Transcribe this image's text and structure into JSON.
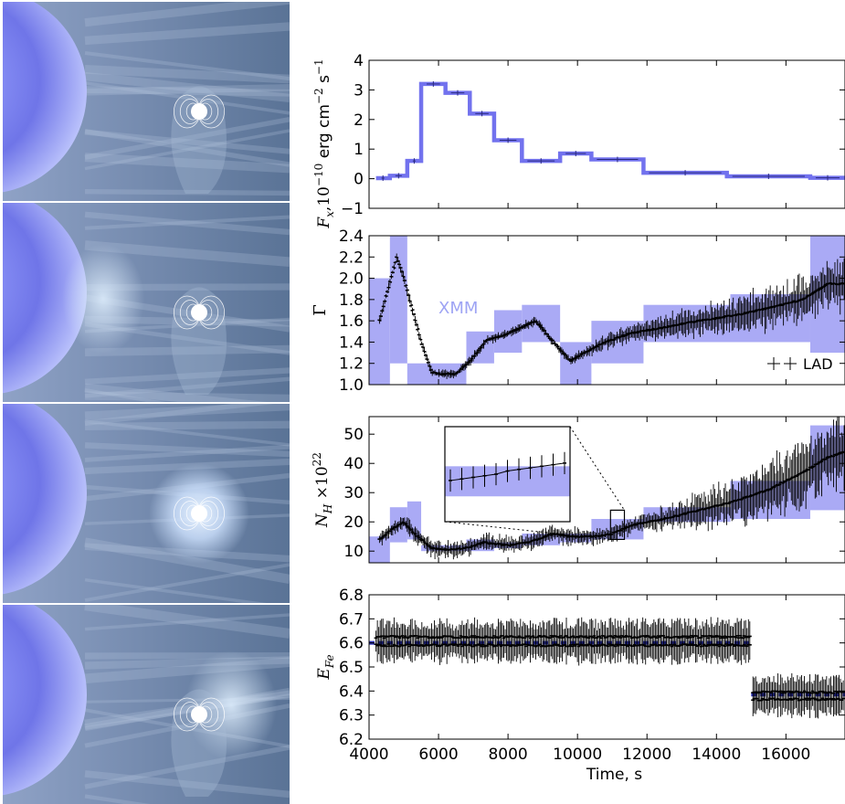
{
  "illustration": {
    "panels": [
      {
        "stage": "quiescent",
        "clump": "none"
      },
      {
        "stage": "clump-approaching",
        "clump": "left"
      },
      {
        "stage": "clump-engulfing",
        "clump": "center"
      },
      {
        "stage": "clump-receding",
        "clump": "right"
      }
    ],
    "colors": {
      "star": "#6f75e8",
      "background": "#6f88a8",
      "glow": "#eaf4ff"
    }
  },
  "colors": {
    "xmm_band": "#aaaaf5",
    "xmm_line": "#7272ee",
    "lad": "#000000",
    "fe_blue": "#2c32b8"
  },
  "chart_data": [
    {
      "type": "line",
      "subplot": "flux",
      "xlim": [
        4000,
        17700
      ],
      "ylim": [
        -1,
        4
      ],
      "yticks": [
        -1,
        0,
        1,
        2,
        3,
        4
      ],
      "ylabel": {
        "main": "F",
        "sub": "x",
        "mid": ",10",
        "sup": "−10",
        "unit": " erg cm",
        "u_sup1": "−2",
        "u_mid": " s",
        "u_sup2": "−1"
      },
      "steps": [
        {
          "x0": 4200,
          "x1": 4600,
          "y": 0.02
        },
        {
          "x0": 4600,
          "x1": 5100,
          "y": 0.1
        },
        {
          "x0": 5100,
          "x1": 5500,
          "y": 0.6
        },
        {
          "x0": 5500,
          "x1": 6200,
          "y": 3.2
        },
        {
          "x0": 6200,
          "x1": 6900,
          "y": 2.9
        },
        {
          "x0": 6900,
          "x1": 7600,
          "y": 2.2
        },
        {
          "x0": 7600,
          "x1": 8400,
          "y": 1.3
        },
        {
          "x0": 8400,
          "x1": 9500,
          "y": 0.6
        },
        {
          "x0": 9500,
          "x1": 10400,
          "y": 0.85
        },
        {
          "x0": 10400,
          "x1": 11900,
          "y": 0.65
        },
        {
          "x0": 11900,
          "x1": 14300,
          "y": 0.2
        },
        {
          "x0": 14300,
          "x1": 16700,
          "y": 0.08
        },
        {
          "x0": 16700,
          "x1": 17700,
          "y": 0.03
        }
      ]
    },
    {
      "type": "line",
      "subplot": "gamma",
      "xlim": [
        4000,
        17700
      ],
      "ylim": [
        1.0,
        2.4
      ],
      "yticks": [
        "1.0",
        "1.2",
        "1.4",
        "1.6",
        "1.8",
        "2.0",
        "2.2",
        "2.4"
      ],
      "ylabel": "Γ",
      "annotation": "XMM",
      "legend": {
        "label": "LAD",
        "placement": "bottom-right"
      },
      "bands": [
        {
          "x0": 4000,
          "x1": 4600,
          "lo": 1.0,
          "hi": 2.0
        },
        {
          "x0": 4600,
          "x1": 5100,
          "lo": 1.2,
          "hi": 2.4
        },
        {
          "x0": 5100,
          "x1": 6800,
          "lo": 1.0,
          "hi": 1.2
        },
        {
          "x0": 6800,
          "x1": 7600,
          "lo": 1.2,
          "hi": 1.5
        },
        {
          "x0": 7600,
          "x1": 8400,
          "lo": 1.3,
          "hi": 1.7
        },
        {
          "x0": 8400,
          "x1": 9500,
          "lo": 1.4,
          "hi": 1.75
        },
        {
          "x0": 9500,
          "x1": 10400,
          "lo": 1.0,
          "hi": 1.4
        },
        {
          "x0": 10400,
          "x1": 11900,
          "lo": 1.2,
          "hi": 1.6
        },
        {
          "x0": 11900,
          "x1": 14400,
          "lo": 1.4,
          "hi": 1.75
        },
        {
          "x0": 14400,
          "x1": 16700,
          "lo": 1.4,
          "hi": 1.85
        },
        {
          "x0": 16700,
          "x1": 17700,
          "lo": 1.3,
          "hi": 2.4
        }
      ],
      "lad": {
        "knots": [
          [
            4300,
            1.6
          ],
          [
            4800,
            2.2
          ],
          [
            5000,
            2.0
          ],
          [
            5500,
            1.4
          ],
          [
            5800,
            1.12
          ],
          [
            6000,
            1.1
          ],
          [
            6500,
            1.1
          ],
          [
            6900,
            1.22
          ],
          [
            7400,
            1.42
          ],
          [
            8000,
            1.48
          ],
          [
            8800,
            1.6
          ],
          [
            9300,
            1.4
          ],
          [
            9800,
            1.22
          ],
          [
            10200,
            1.3
          ],
          [
            10800,
            1.4
          ],
          [
            11500,
            1.48
          ],
          [
            12500,
            1.54
          ],
          [
            13500,
            1.6
          ],
          [
            14500,
            1.65
          ],
          [
            15500,
            1.72
          ],
          [
            16500,
            1.8
          ],
          [
            17200,
            1.95
          ],
          [
            17700,
            1.95
          ]
        ],
        "err_start": 9800,
        "err_lo": 0.02,
        "err_hi": 0.12
      }
    },
    {
      "type": "line",
      "subplot": "nh",
      "xlim": [
        4000,
        17700
      ],
      "ylim": [
        6,
        56
      ],
      "yticks": [
        10,
        20,
        30,
        40,
        50
      ],
      "ylabel": {
        "main": "N",
        "sub": "H",
        "mid": " ×10",
        "sup": "22"
      },
      "bands": [
        {
          "x0": 4000,
          "x1": 4600,
          "lo": 6,
          "hi": 15
        },
        {
          "x0": 4600,
          "x1": 5100,
          "lo": 13,
          "hi": 25
        },
        {
          "x0": 5100,
          "x1": 5500,
          "lo": 14,
          "hi": 27
        },
        {
          "x0": 5500,
          "x1": 6800,
          "lo": 10,
          "hi": 12
        },
        {
          "x0": 6800,
          "x1": 7600,
          "lo": 10,
          "hi": 14
        },
        {
          "x0": 7600,
          "x1": 8400,
          "lo": 11,
          "hi": 13
        },
        {
          "x0": 8400,
          "x1": 9500,
          "lo": 12,
          "hi": 16
        },
        {
          "x0": 9500,
          "x1": 10400,
          "lo": 13,
          "hi": 16
        },
        {
          "x0": 10400,
          "x1": 11900,
          "lo": 14,
          "hi": 21
        },
        {
          "x0": 11900,
          "x1": 14400,
          "lo": 20,
          "hi": 25
        },
        {
          "x0": 14400,
          "x1": 16700,
          "lo": 21,
          "hi": 34
        },
        {
          "x0": 16700,
          "x1": 17700,
          "lo": 24,
          "hi": 53
        }
      ],
      "lad": {
        "knots": [
          [
            4300,
            14
          ],
          [
            4600,
            17
          ],
          [
            5000,
            20
          ],
          [
            5300,
            16
          ],
          [
            5800,
            11
          ],
          [
            6200,
            10.5
          ],
          [
            6800,
            11
          ],
          [
            7300,
            13
          ],
          [
            8000,
            12
          ],
          [
            8600,
            13
          ],
          [
            9300,
            16
          ],
          [
            9800,
            15
          ],
          [
            10500,
            15
          ],
          [
            11000,
            16
          ],
          [
            11600,
            19
          ],
          [
            12500,
            21
          ],
          [
            13500,
            24
          ],
          [
            14500,
            27
          ],
          [
            15500,
            31
          ],
          [
            16500,
            37
          ],
          [
            17200,
            42
          ],
          [
            17700,
            44
          ]
        ],
        "err_start": 11800,
        "err_lo": 0.04,
        "err_hi": 0.18
      },
      "zoom_box": {
        "x0": 10950,
        "x1": 11350,
        "y0": 14,
        "y1": 24
      },
      "inset": {
        "band_lo": 8,
        "band_hi": 17.5,
        "y_range": [
          0,
          30
        ],
        "values": [
          13,
          13.5,
          14,
          14.5,
          15,
          16,
          16.5,
          17,
          17.5,
          18,
          18.5
        ]
      }
    },
    {
      "type": "scatter",
      "subplot": "fe",
      "xlim": [
        4000,
        17700
      ],
      "ylim": [
        6.2,
        6.8
      ],
      "yticks": [
        "6.2",
        "6.3",
        "6.4",
        "6.5",
        "6.6",
        "6.7",
        "6.8"
      ],
      "ylabel": {
        "main": "E",
        "sub": "Fe"
      },
      "xlabel": "Time, s",
      "xticks": [
        4000,
        6000,
        8000,
        10000,
        12000,
        14000,
        16000
      ],
      "segments": [
        {
          "x0": 4000,
          "x1": 15000,
          "level": 6.6,
          "lad_upper": 6.625,
          "lad_lower": 6.59
        },
        {
          "x0": 15000,
          "x1": 17700,
          "level": 6.385,
          "lad_upper": 6.395,
          "lad_lower": 6.365
        }
      ]
    }
  ]
}
